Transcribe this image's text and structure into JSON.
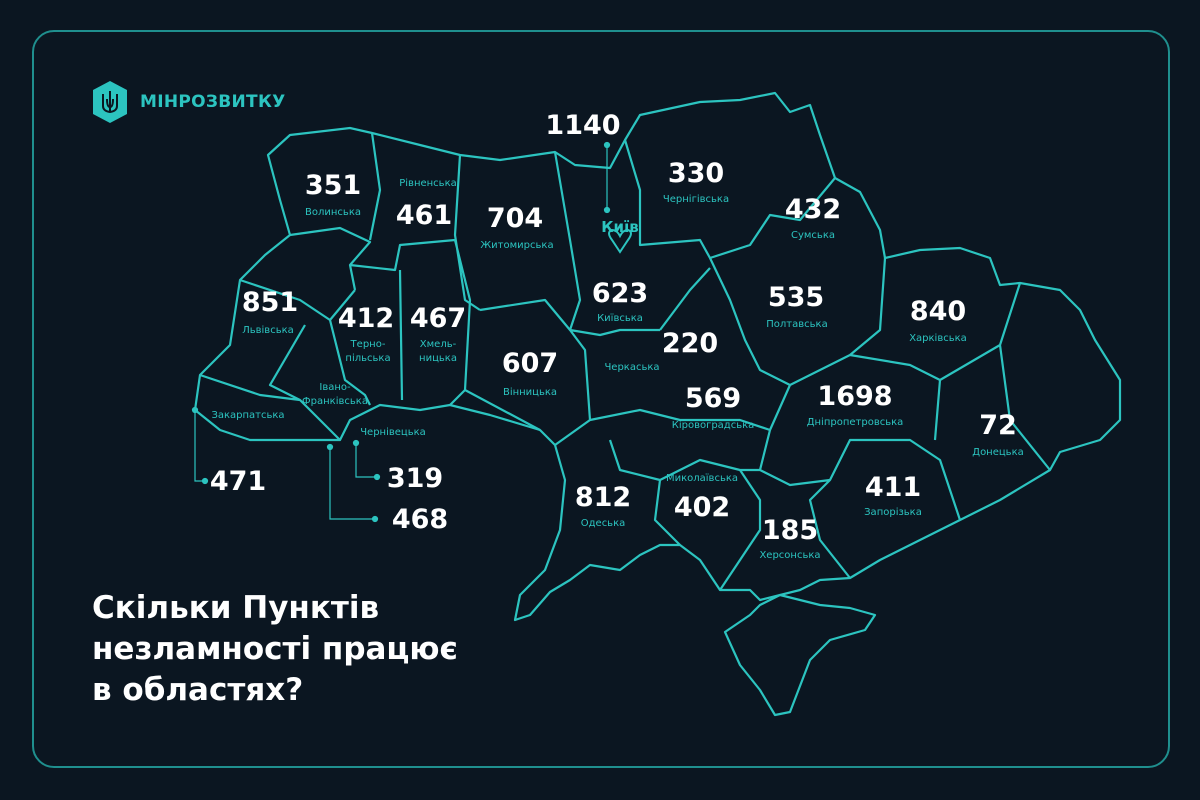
{
  "brand": {
    "name": "МІНРОЗВИТКУ",
    "logo_icon": "trident-hexagon-icon",
    "accent": "#2cc4c0",
    "background": "#0b1621"
  },
  "title": {
    "line1": "Скільки Пунктів",
    "line2": "незламності працює",
    "line3": "в областях?"
  },
  "kyiv": {
    "name": "Київ",
    "value": "1140"
  },
  "regions": {
    "volynska": {
      "name": "Волинська",
      "value": "351"
    },
    "rivnenska": {
      "name": "Рівненська",
      "value": "461"
    },
    "zhytomyrska": {
      "name": "Житомирська",
      "value": "704"
    },
    "kyivska": {
      "name": "Київська",
      "value": "623"
    },
    "chernihivska": {
      "name": "Чернігівська",
      "value": "330"
    },
    "sumska": {
      "name": "Сумська",
      "value": "432"
    },
    "lvivska": {
      "name": "Львівська",
      "value": "851"
    },
    "ternopilska": {
      "name1": "Терно-",
      "name2": "пільська",
      "value": "412"
    },
    "khmelnytska": {
      "name1": "Хмель-",
      "name2": "ницька",
      "value": "467"
    },
    "vinnytska": {
      "name": "Вінницька",
      "value": "607"
    },
    "cherkaska": {
      "name": "Черкаська",
      "value": "220"
    },
    "poltavska": {
      "name": "Полтавська",
      "value": "535"
    },
    "kharkivska": {
      "name": "Харківська",
      "value": "840"
    },
    "kirovohradska": {
      "name": "Кіровоградська",
      "value": "569"
    },
    "dnipropetrovska": {
      "name": "Дніпропетровська",
      "value": "1698"
    },
    "donetska": {
      "name": "Донецька",
      "value": "72"
    },
    "zaporizka": {
      "name": "Запорізька",
      "value": "411"
    },
    "khersonska": {
      "name": "Херсонська",
      "value": "185"
    },
    "mykolaivska": {
      "name": "Миколаївська",
      "value": "402"
    },
    "odeska": {
      "name": "Одеська",
      "value": "812"
    },
    "zakarpatska": {
      "name": "Закарпатська",
      "value": "471"
    },
    "ivanofrankivska": {
      "name1": "Івано-",
      "name2": "Франківська",
      "value": "468"
    },
    "chernivetska": {
      "name": "Чернівецька",
      "value": "319"
    }
  }
}
